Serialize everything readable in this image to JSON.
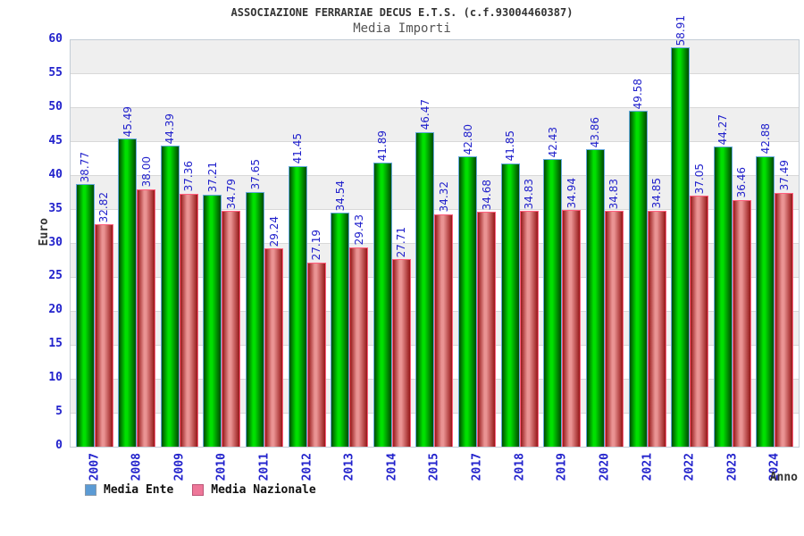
{
  "chart_data": {
    "type": "bar",
    "title": "ASSOCIAZIONE FERRARIAE DECUS E.T.S. (c.f.93004460387)",
    "subtitle": "Media Importi",
    "categories": [
      "2007",
      "2008",
      "2009",
      "2010",
      "2011",
      "2012",
      "2013",
      "2014",
      "2015",
      "2017",
      "2018",
      "2019",
      "2020",
      "2021",
      "2022",
      "2023",
      "2024"
    ],
    "series": [
      {
        "name": "Media Ente",
        "values": [
          38.77,
          45.49,
          44.39,
          37.21,
          37.65,
          41.45,
          34.54,
          41.89,
          46.47,
          42.8,
          41.85,
          42.43,
          43.86,
          49.58,
          58.91,
          44.27,
          42.88
        ]
      },
      {
        "name": "Media Nazionale",
        "values": [
          32.82,
          38.0,
          37.36,
          34.79,
          29.24,
          27.19,
          29.43,
          27.71,
          34.32,
          34.68,
          34.83,
          34.94,
          34.83,
          34.85,
          37.05,
          36.46,
          37.49
        ]
      }
    ],
    "xlabel": "Anno",
    "ylabel": "Euro",
    "ylim": [
      0,
      60
    ],
    "y_tick_step": 5,
    "grid": true,
    "band_fill": "alternating horizontal gray/white bands per 5 Euro",
    "value_labels": "rotated 90deg above each bar, 2 decimals",
    "legend_position": "bottom-left"
  },
  "legend": {
    "items": [
      {
        "label": "Media Ente",
        "swatch_fill": "#5b9bd5",
        "swatch_border": "#8899aa"
      },
      {
        "label": "Media Nazionale",
        "swatch_fill": "#ee7799",
        "swatch_border": "#bb5577"
      }
    ]
  },
  "colors": {
    "axis_text": "#2222cc",
    "title_text": "#333333",
    "subtitle_text": "#555555",
    "band_gray": "#efefef",
    "band_white": "#ffffff",
    "grid_line": "#d8d8d8",
    "ente_bar_edge": "#004a00",
    "ente_bar_mid": "#00e000",
    "ente_bar_border": "#64a8dc",
    "nazionale_bar_edge": "#961818",
    "nazionale_bar_mid": "#ea9393",
    "nazionale_bar_border": "#ff5f7d"
  }
}
